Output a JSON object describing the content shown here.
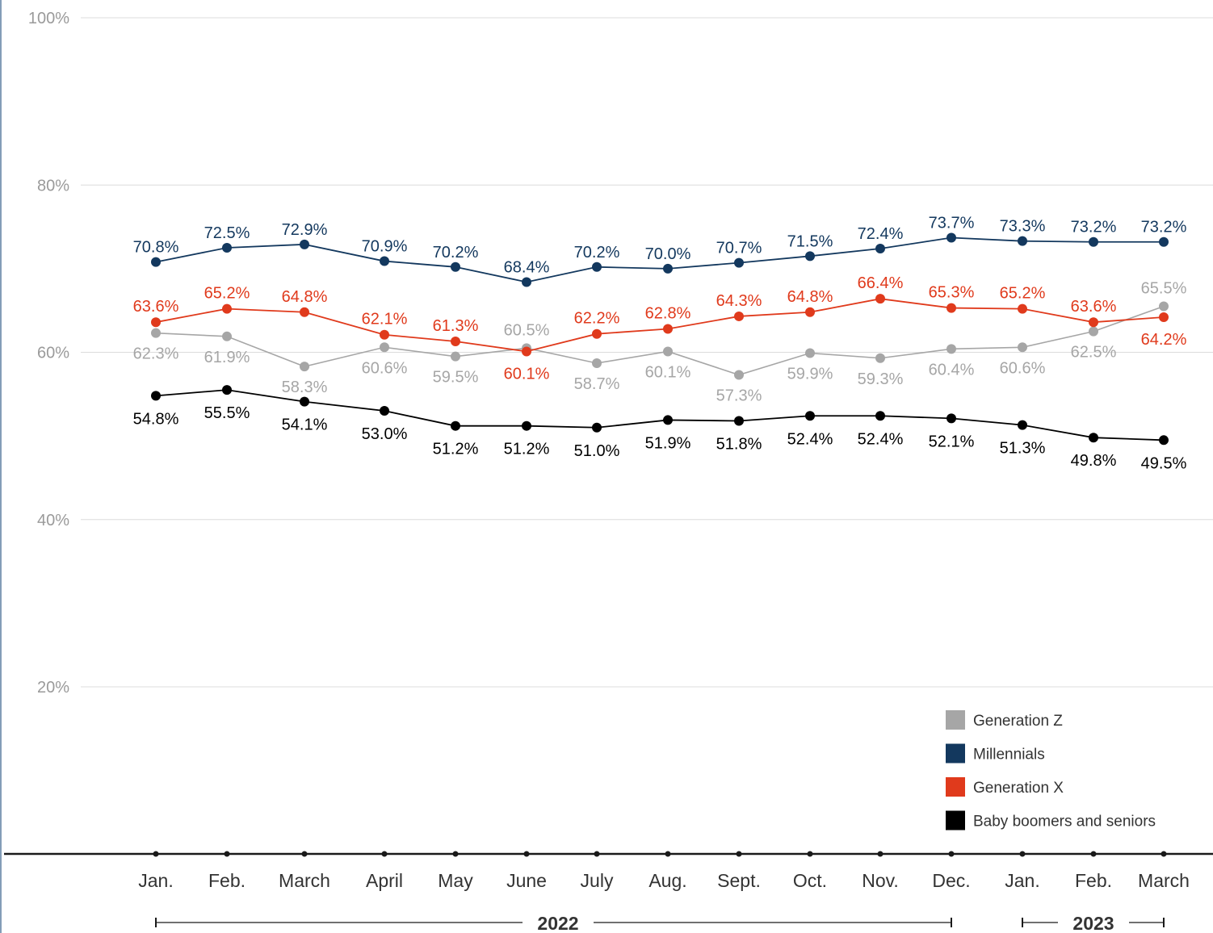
{
  "chart_data": {
    "type": "line",
    "title": "",
    "xlabel": "",
    "ylabel": "",
    "ylim": [
      0,
      100
    ],
    "yticks": [
      20,
      40,
      60,
      80,
      100
    ],
    "ytick_labels": [
      "20%",
      "40%",
      "60%",
      "80%",
      "100%"
    ],
    "grid": true,
    "legend_position": "bottom-right",
    "categories": [
      "Jan.",
      "Feb.",
      "March",
      "April",
      "May",
      "June",
      "July",
      "Aug.",
      "Sept.",
      "Oct.",
      "Nov.",
      "Dec.",
      "Jan.",
      "Feb.",
      "March"
    ],
    "years": [
      {
        "label": "2022",
        "start_index": 0,
        "end_index": 11
      },
      {
        "label": "2023",
        "start_index": 12,
        "end_index": 14
      }
    ],
    "series": [
      {
        "name": "Generation Z",
        "color": "#a6a6a6",
        "values": [
          62.3,
          61.9,
          58.3,
          60.6,
          59.5,
          60.5,
          58.7,
          60.1,
          57.3,
          59.9,
          59.3,
          60.4,
          60.6,
          62.5,
          65.5
        ],
        "labels": [
          "62.3%",
          "61.9%",
          "58.3%",
          "60.6%",
          "59.5%",
          "60.5%",
          "58.7%",
          "60.1%",
          "57.3%",
          "59.9%",
          "59.3%",
          "60.4%",
          "60.6%",
          "62.5%",
          "65.5%"
        ]
      },
      {
        "name": "Millennials",
        "color": "#13385e",
        "values": [
          70.8,
          72.5,
          72.9,
          70.9,
          70.2,
          68.4,
          70.2,
          70.0,
          70.7,
          71.5,
          72.4,
          73.7,
          73.3,
          73.2,
          73.2
        ],
        "labels": [
          "70.8%",
          "72.5%",
          "72.9%",
          "70.9%",
          "70.2%",
          "68.4%",
          "70.2%",
          "70.0%",
          "70.7%",
          "71.5%",
          "72.4%",
          "73.7%",
          "73.3%",
          "73.2%",
          "73.2%"
        ]
      },
      {
        "name": "Generation X",
        "color": "#e03a1c",
        "values": [
          63.6,
          65.2,
          64.8,
          62.1,
          61.3,
          60.1,
          62.2,
          62.8,
          64.3,
          64.8,
          66.4,
          65.3,
          65.2,
          63.6,
          64.2
        ],
        "labels": [
          "63.6%",
          "65.2%",
          "64.8%",
          "62.1%",
          "61.3%",
          "60.1%",
          "62.2%",
          "62.8%",
          "64.3%",
          "64.8%",
          "66.4%",
          "65.3%",
          "65.2%",
          "63.6%",
          "64.2%"
        ]
      },
      {
        "name": "Baby boomers and seniors",
        "color": "#000000",
        "values": [
          54.8,
          55.5,
          54.1,
          53.0,
          51.2,
          51.2,
          51.0,
          51.9,
          51.8,
          52.4,
          52.4,
          52.1,
          51.3,
          49.8,
          49.5
        ],
        "labels": [
          "54.8%",
          "55.5%",
          "54.1%",
          "53.0%",
          "51.2%",
          "51.2%",
          "51.0%",
          "51.9%",
          "51.8%",
          "52.4%",
          "52.4%",
          "52.1%",
          "51.3%",
          "49.8%",
          "49.5%"
        ]
      }
    ]
  }
}
